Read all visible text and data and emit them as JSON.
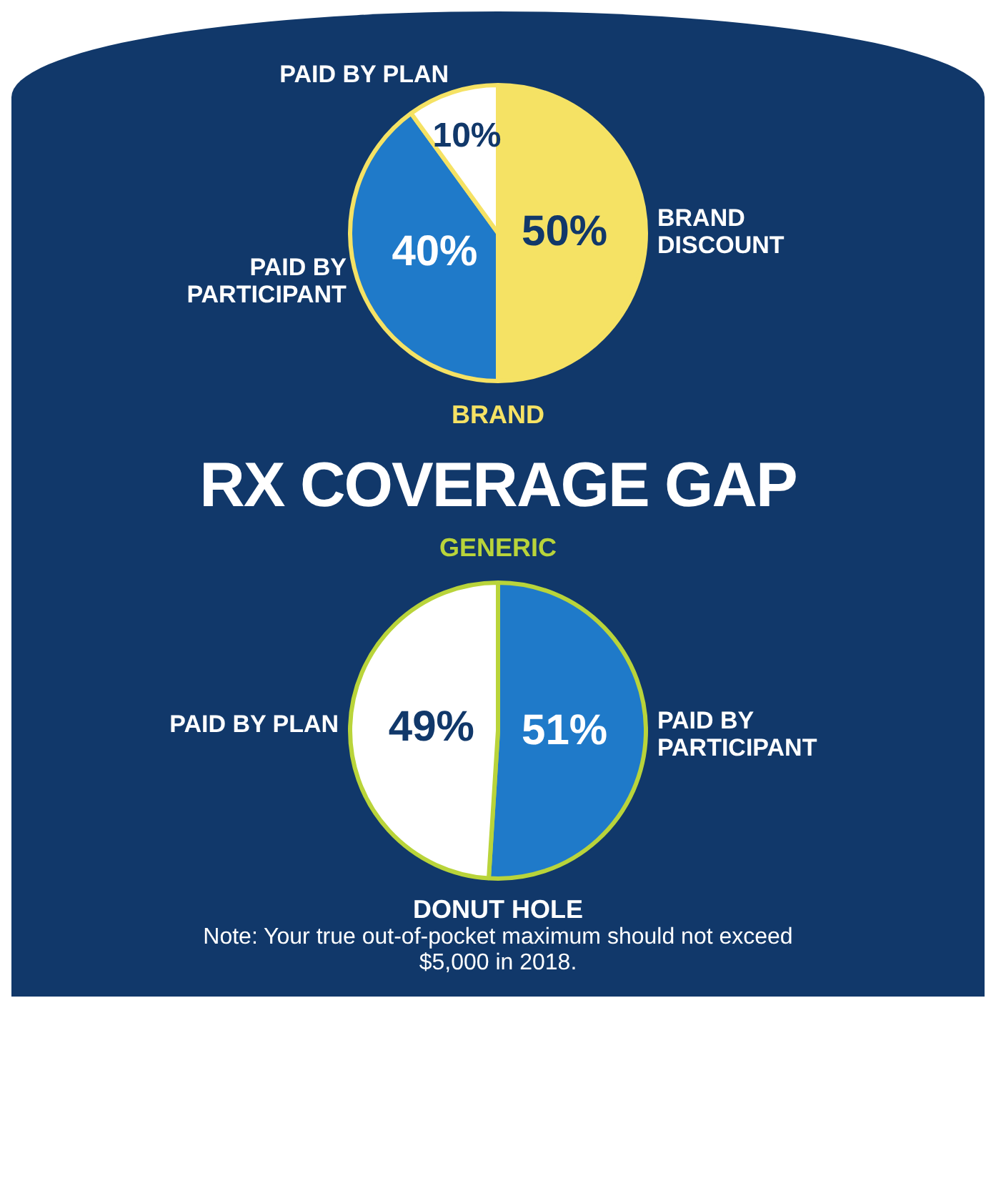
{
  "chart_data": [
    {
      "type": "pie",
      "title": "BRAND",
      "categories": [
        "BRAND DISCOUNT",
        "PAID BY PARTICIPANT",
        "PAID BY PLAN"
      ],
      "values": [
        50,
        40,
        10
      ],
      "colors": [
        "#f5e264",
        "#1f7ac9",
        "#ffffff"
      ],
      "value_labels": [
        "50%",
        "40%",
        "10%"
      ],
      "legend": false
    },
    {
      "type": "other",
      "title": "RX COVERAGE GAP"
    },
    {
      "type": "pie",
      "title": "GENERIC",
      "categories": [
        "PAID BY PARTICIPANT",
        "PAID BY PLAN"
      ],
      "values": [
        51,
        49
      ],
      "colors": [
        "#1f7ac9",
        "#ffffff"
      ],
      "value_labels": [
        "51%",
        "49%"
      ],
      "legend": false,
      "annotations": [
        "DONUT HOLE",
        "Note: Your true out-of-pocket maximum should not exceed $5,000 in 2018."
      ]
    }
  ]
}
